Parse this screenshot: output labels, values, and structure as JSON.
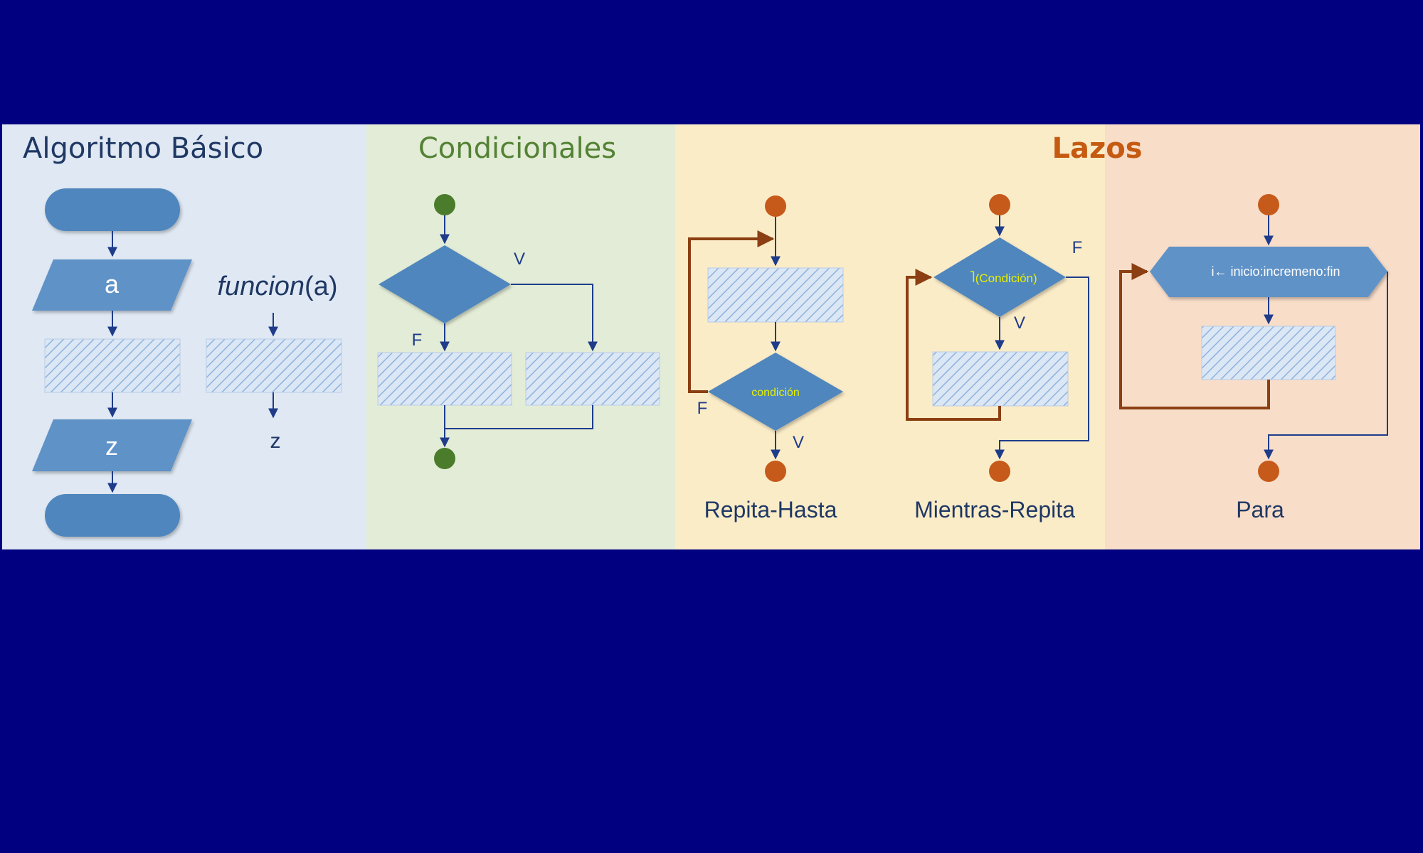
{
  "sections": {
    "basic": {
      "title": "Algoritmo Básico",
      "input_label": "a",
      "output_label": "z",
      "function_label_italic": "funcion",
      "function_label_arg": "(a)",
      "function_output": "z"
    },
    "conditionals": {
      "title": "Condicionales",
      "true_label": "V",
      "false_label": "F"
    },
    "loops": {
      "title": "Lazos",
      "repeat_until": {
        "caption": "Repita-Hasta",
        "condition": "condición",
        "true_label": "V",
        "false_label": "F"
      },
      "while": {
        "caption": "Mientras-Repita",
        "condition": "(Condición)",
        "negation_glyph": "˥",
        "true_label": "V",
        "false_label": "F"
      },
      "for": {
        "caption": "Para",
        "header": "i← inicio:incremeno:fin"
      }
    }
  },
  "colors": {
    "background": "#000080",
    "basic_panel": "#dfe8f3",
    "conditionals_panel": "#e3ecd6",
    "loops_panel_yellow": "#fbecc8",
    "loops_panel_salmon": "#f8ddc9",
    "shape_blue": "#5f92c7",
    "line_blue": "#1f3c8a",
    "node_green": "#4a7c2c",
    "node_orange": "#c65a1a",
    "loop_arrow_brown": "#8b3f12",
    "title_basic": "#1f3864",
    "title_conditionals": "#548235",
    "title_loops": "#c55a11",
    "condition_text": "#e6f000"
  }
}
